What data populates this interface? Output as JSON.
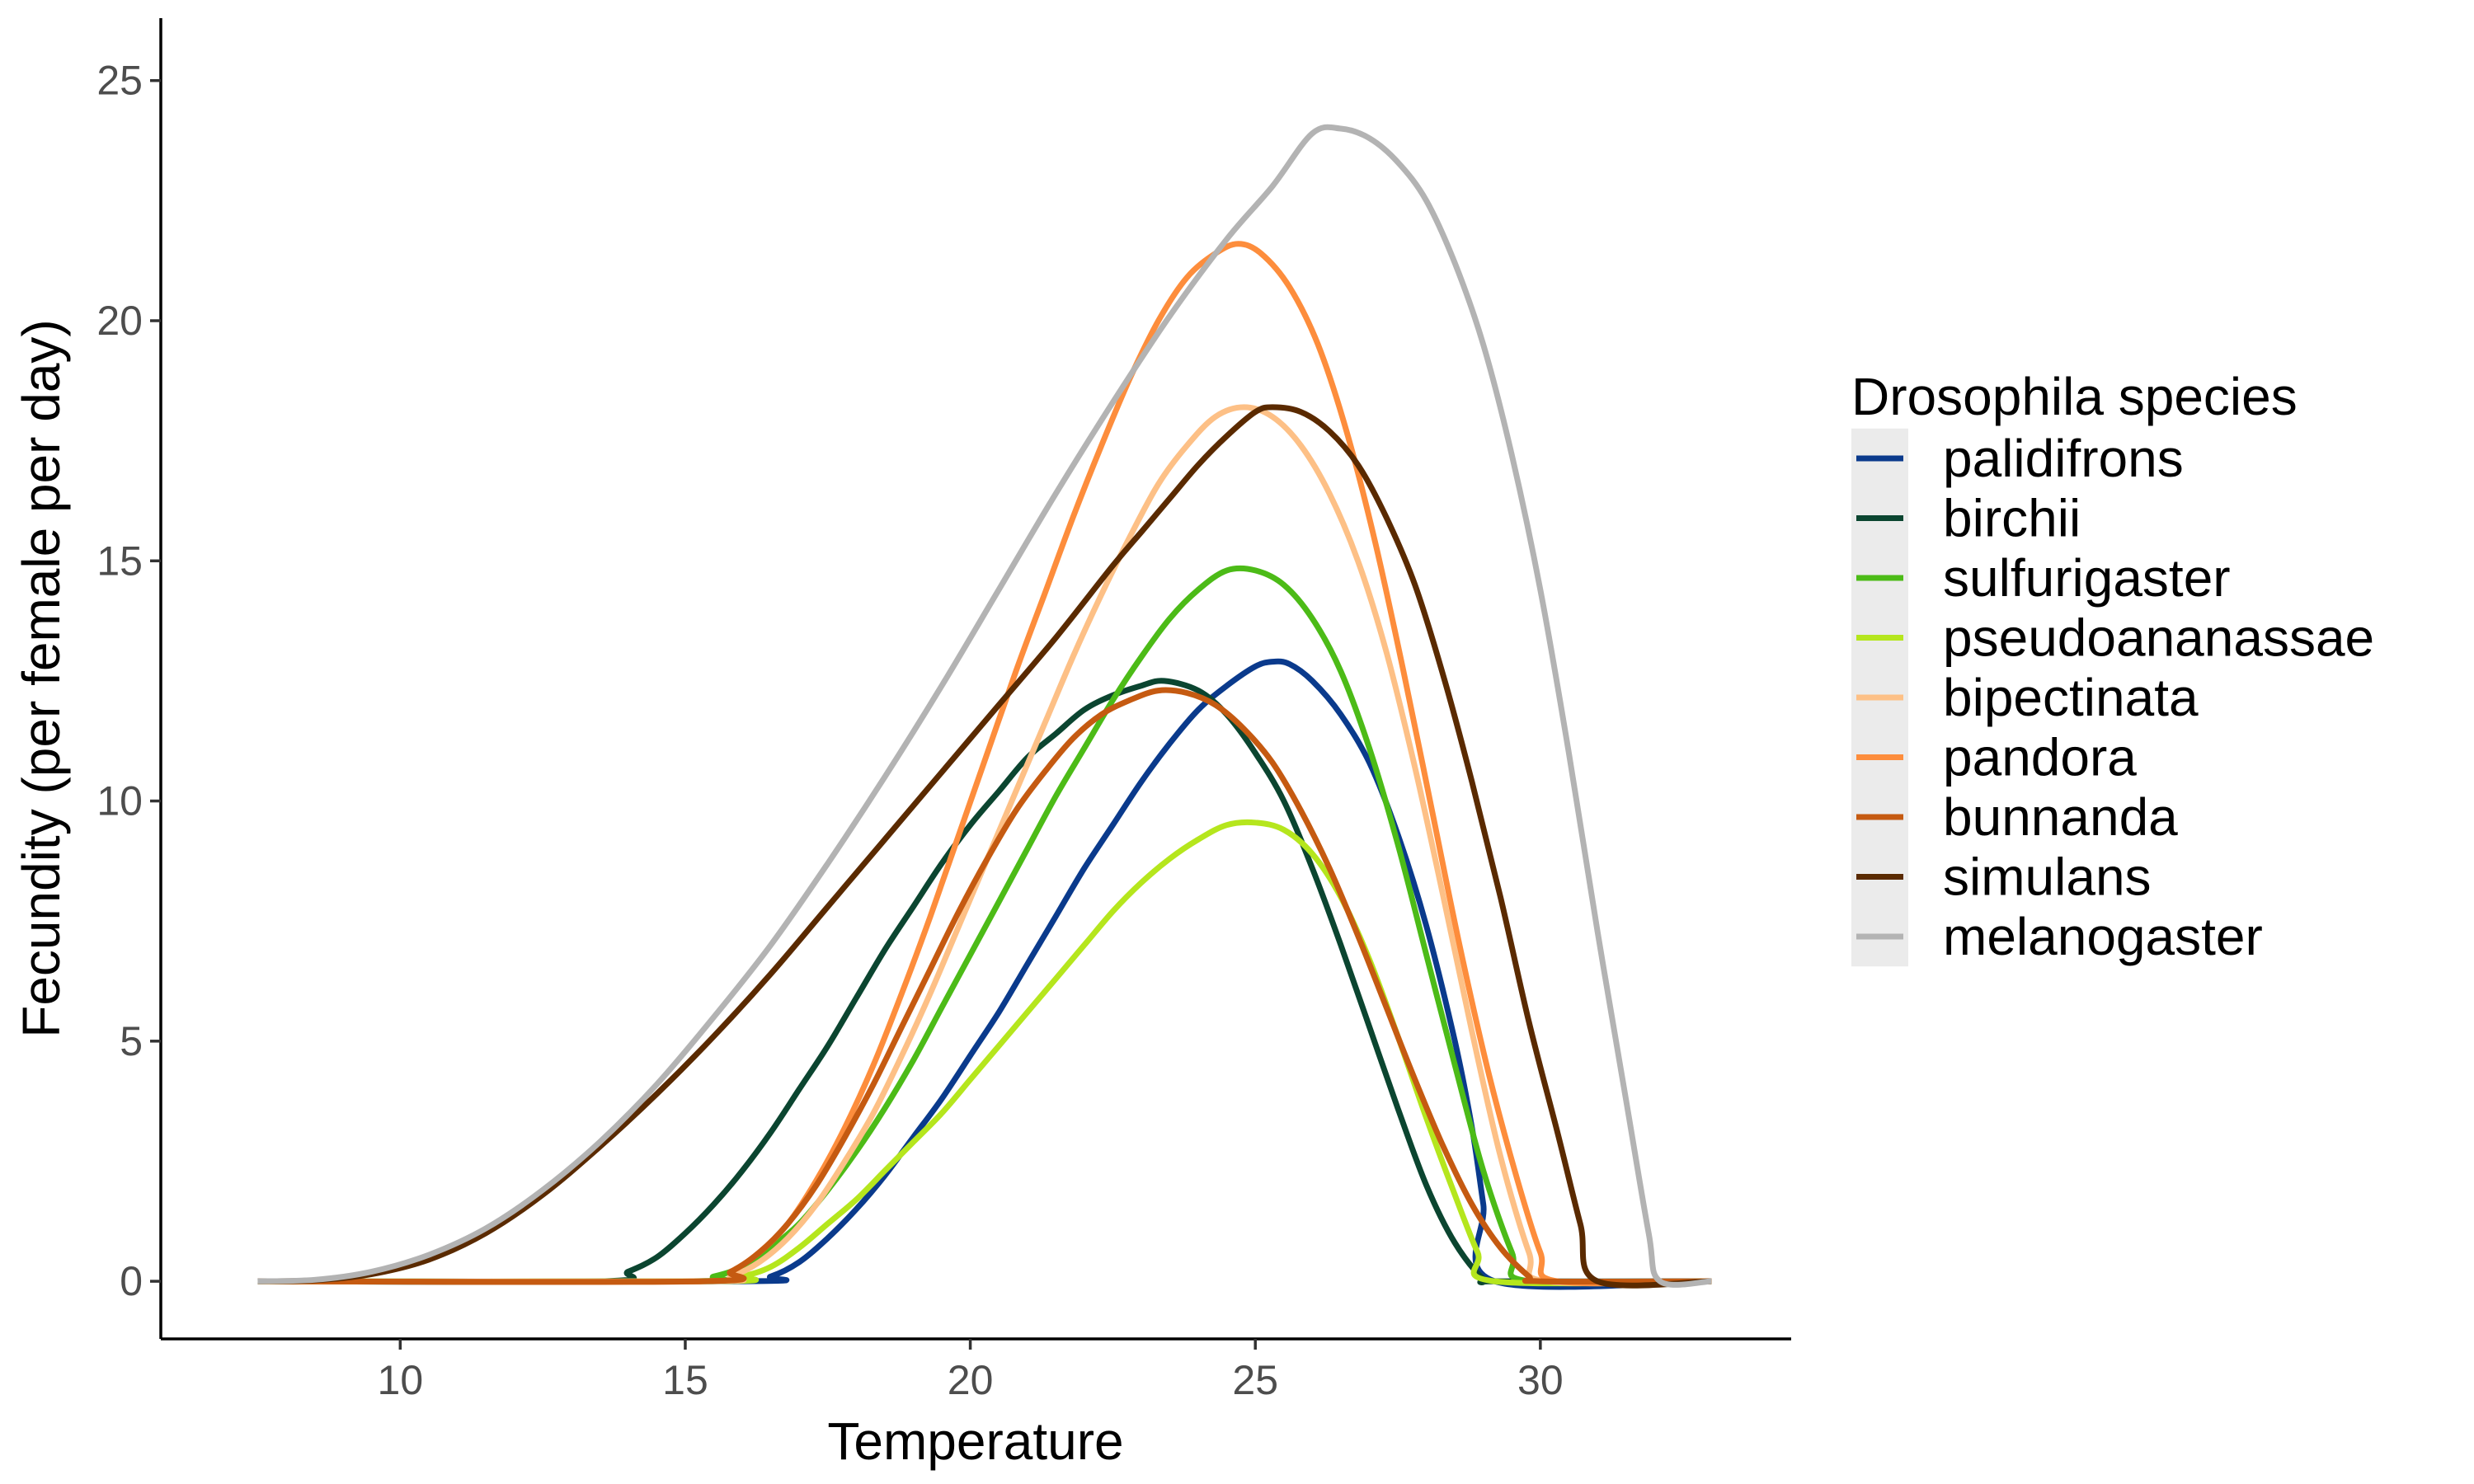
{
  "chart_data": {
    "type": "line",
    "title": "",
    "xlabel": "Temperature",
    "ylabel": "Fecundity (per female per day)",
    "xlim": [
      5.8,
      34.4
    ],
    "ylim": [
      -1.2,
      26.3
    ],
    "xticks": [
      10,
      15,
      20,
      25,
      30
    ],
    "yticks": [
      0,
      5,
      10,
      15,
      20,
      25
    ],
    "legend": {
      "title": "Drosophila species",
      "position": "right"
    },
    "series": [
      {
        "name": "palidifrons",
        "color": "#0a3a8c",
        "points": [
          [
            7.5,
            0
          ],
          [
            16,
            0
          ],
          [
            16.5,
            0.1
          ],
          [
            17,
            0.4
          ],
          [
            17.5,
            0.9
          ],
          [
            18,
            1.5
          ],
          [
            18.5,
            2.2
          ],
          [
            19,
            3.0
          ],
          [
            19.5,
            3.8
          ],
          [
            20,
            4.7
          ],
          [
            20.5,
            5.6
          ],
          [
            21,
            6.6
          ],
          [
            21.5,
            7.6
          ],
          [
            22,
            8.6
          ],
          [
            22.5,
            9.5
          ],
          [
            23,
            10.4
          ],
          [
            23.5,
            11.2
          ],
          [
            24,
            11.9
          ],
          [
            24.5,
            12.4
          ],
          [
            25,
            12.8
          ],
          [
            25.3,
            12.9
          ],
          [
            25.6,
            12.85
          ],
          [
            26,
            12.5
          ],
          [
            26.5,
            11.8
          ],
          [
            27,
            10.8
          ],
          [
            27.5,
            9.3
          ],
          [
            28,
            7.4
          ],
          [
            28.5,
            5.0
          ],
          [
            28.8,
            3.2
          ],
          [
            29.0,
            1.6
          ],
          [
            29.2,
            0
          ],
          [
            33,
            0
          ]
        ]
      },
      {
        "name": "birchii",
        "color": "#0b4530",
        "points": [
          [
            7.5,
            0
          ],
          [
            13.5,
            0
          ],
          [
            14,
            0.2
          ],
          [
            14.5,
            0.5
          ],
          [
            15,
            1.0
          ],
          [
            15.5,
            1.6
          ],
          [
            16,
            2.3
          ],
          [
            16.5,
            3.1
          ],
          [
            17,
            4.0
          ],
          [
            17.5,
            4.9
          ],
          [
            18,
            5.9
          ],
          [
            18.5,
            6.9
          ],
          [
            19,
            7.8
          ],
          [
            19.5,
            8.7
          ],
          [
            20,
            9.5
          ],
          [
            20.5,
            10.2
          ],
          [
            21,
            10.9
          ],
          [
            21.5,
            11.4
          ],
          [
            22,
            11.9
          ],
          [
            22.5,
            12.2
          ],
          [
            23,
            12.4
          ],
          [
            23.4,
            12.5
          ],
          [
            24,
            12.3
          ],
          [
            24.5,
            11.8
          ],
          [
            25,
            11.0
          ],
          [
            25.5,
            10.0
          ],
          [
            26,
            8.6
          ],
          [
            26.5,
            7.0
          ],
          [
            27,
            5.3
          ],
          [
            27.5,
            3.6
          ],
          [
            28,
            2.0
          ],
          [
            28.5,
            0.8
          ],
          [
            29,
            0.05
          ],
          [
            29.3,
            0
          ],
          [
            33,
            0
          ]
        ]
      },
      {
        "name": "sulfurigaster",
        "color": "#4cbb17",
        "points": [
          [
            7.5,
            0
          ],
          [
            15,
            0
          ],
          [
            15.5,
            0.1
          ],
          [
            16,
            0.3
          ],
          [
            16.5,
            0.7
          ],
          [
            17,
            1.2
          ],
          [
            17.5,
            1.9
          ],
          [
            18,
            2.7
          ],
          [
            18.5,
            3.6
          ],
          [
            19,
            4.6
          ],
          [
            19.5,
            5.7
          ],
          [
            20,
            6.8
          ],
          [
            20.5,
            7.9
          ],
          [
            21,
            9.0
          ],
          [
            21.5,
            10.1
          ],
          [
            22,
            11.1
          ],
          [
            22.5,
            12.1
          ],
          [
            23,
            13.0
          ],
          [
            23.5,
            13.8
          ],
          [
            24,
            14.4
          ],
          [
            24.5,
            14.8
          ],
          [
            25,
            14.8
          ],
          [
            25.5,
            14.5
          ],
          [
            26,
            13.8
          ],
          [
            26.5,
            12.7
          ],
          [
            27,
            11.1
          ],
          [
            27.5,
            9.1
          ],
          [
            28,
            6.8
          ],
          [
            28.5,
            4.5
          ],
          [
            29,
            2.3
          ],
          [
            29.5,
            0.6
          ],
          [
            29.8,
            0
          ],
          [
            33,
            0
          ]
        ]
      },
      {
        "name": "pseudoananassae",
        "color": "#b5e61d",
        "points": [
          [
            7.5,
            0
          ],
          [
            15.5,
            0
          ],
          [
            16,
            0.1
          ],
          [
            16.5,
            0.3
          ],
          [
            17,
            0.7
          ],
          [
            17.5,
            1.2
          ],
          [
            18,
            1.7
          ],
          [
            18.5,
            2.3
          ],
          [
            19,
            2.9
          ],
          [
            19.5,
            3.5
          ],
          [
            20,
            4.2
          ],
          [
            20.5,
            4.9
          ],
          [
            21,
            5.6
          ],
          [
            21.5,
            6.3
          ],
          [
            22,
            7.0
          ],
          [
            22.5,
            7.7
          ],
          [
            23,
            8.3
          ],
          [
            23.5,
            8.8
          ],
          [
            24,
            9.2
          ],
          [
            24.5,
            9.5
          ],
          [
            25,
            9.55
          ],
          [
            25.5,
            9.4
          ],
          [
            26,
            8.9
          ],
          [
            26.5,
            8.0
          ],
          [
            27,
            6.7
          ],
          [
            27.5,
            5.1
          ],
          [
            28,
            3.4
          ],
          [
            28.5,
            1.8
          ],
          [
            28.9,
            0.6
          ],
          [
            29.2,
            0
          ],
          [
            33,
            0
          ]
        ]
      },
      {
        "name": "bipectinata",
        "color": "#fdc086",
        "points": [
          [
            7.5,
            0
          ],
          [
            15.3,
            0
          ],
          [
            15.8,
            0.1
          ],
          [
            16.3,
            0.4
          ],
          [
            16.8,
            0.9
          ],
          [
            17.3,
            1.6
          ],
          [
            17.8,
            2.5
          ],
          [
            18.3,
            3.5
          ],
          [
            18.8,
            4.7
          ],
          [
            19.3,
            6.0
          ],
          [
            19.8,
            7.4
          ],
          [
            20.3,
            8.8
          ],
          [
            20.8,
            10.2
          ],
          [
            21.3,
            11.6
          ],
          [
            21.8,
            13.0
          ],
          [
            22.3,
            14.3
          ],
          [
            22.8,
            15.5
          ],
          [
            23.3,
            16.6
          ],
          [
            23.8,
            17.4
          ],
          [
            24.3,
            18.0
          ],
          [
            24.8,
            18.2
          ],
          [
            25.3,
            18.0
          ],
          [
            25.8,
            17.4
          ],
          [
            26.3,
            16.4
          ],
          [
            26.8,
            15.0
          ],
          [
            27.3,
            13.1
          ],
          [
            27.8,
            10.7
          ],
          [
            28.3,
            8.0
          ],
          [
            28.8,
            5.2
          ],
          [
            29.3,
            2.6
          ],
          [
            29.8,
            0.6
          ],
          [
            30.1,
            0
          ],
          [
            33,
            0
          ]
        ]
      },
      {
        "name": "pandora",
        "color": "#fd8d3c",
        "points": [
          [
            7.5,
            0
          ],
          [
            15.3,
            0
          ],
          [
            15.8,
            0.2
          ],
          [
            16.3,
            0.6
          ],
          [
            16.8,
            1.2
          ],
          [
            17.3,
            2.1
          ],
          [
            17.8,
            3.2
          ],
          [
            18.3,
            4.5
          ],
          [
            18.8,
            6.0
          ],
          [
            19.3,
            7.6
          ],
          [
            19.8,
            9.3
          ],
          [
            20.3,
            11.0
          ],
          [
            20.8,
            12.7
          ],
          [
            21.3,
            14.3
          ],
          [
            21.8,
            15.9
          ],
          [
            22.3,
            17.4
          ],
          [
            22.8,
            18.8
          ],
          [
            23.3,
            20.0
          ],
          [
            23.8,
            20.9
          ],
          [
            24.3,
            21.4
          ],
          [
            24.7,
            21.6
          ],
          [
            25.1,
            21.4
          ],
          [
            25.6,
            20.7
          ],
          [
            26.1,
            19.5
          ],
          [
            26.6,
            17.7
          ],
          [
            27.1,
            15.4
          ],
          [
            27.6,
            12.7
          ],
          [
            28.1,
            9.8
          ],
          [
            28.6,
            6.9
          ],
          [
            29.1,
            4.3
          ],
          [
            29.6,
            2.1
          ],
          [
            30.0,
            0.6
          ],
          [
            30.3,
            0
          ],
          [
            33,
            0
          ]
        ]
      },
      {
        "name": "bunnanda",
        "color": "#c55a11",
        "points": [
          [
            7.5,
            0
          ],
          [
            15.3,
            0
          ],
          [
            15.8,
            0.2
          ],
          [
            16.3,
            0.6
          ],
          [
            16.8,
            1.2
          ],
          [
            17.3,
            2.0
          ],
          [
            17.8,
            3.0
          ],
          [
            18.3,
            4.1
          ],
          [
            18.8,
            5.3
          ],
          [
            19.3,
            6.5
          ],
          [
            19.8,
            7.7
          ],
          [
            20.3,
            8.8
          ],
          [
            20.8,
            9.8
          ],
          [
            21.3,
            10.6
          ],
          [
            21.8,
            11.3
          ],
          [
            22.3,
            11.8
          ],
          [
            22.8,
            12.1
          ],
          [
            23.3,
            12.3
          ],
          [
            23.8,
            12.25
          ],
          [
            24.3,
            12.0
          ],
          [
            24.8,
            11.5
          ],
          [
            25.3,
            10.8
          ],
          [
            25.8,
            9.8
          ],
          [
            26.3,
            8.6
          ],
          [
            26.8,
            7.2
          ],
          [
            27.3,
            5.7
          ],
          [
            27.8,
            4.2
          ],
          [
            28.3,
            2.8
          ],
          [
            28.8,
            1.6
          ],
          [
            29.3,
            0.7
          ],
          [
            29.8,
            0.1
          ],
          [
            30.0,
            0
          ],
          [
            33,
            0
          ]
        ]
      },
      {
        "name": "simulans",
        "color": "#5a2a00",
        "points": [
          [
            7.5,
            0
          ],
          [
            8.5,
            0.02
          ],
          [
            9.5,
            0.15
          ],
          [
            10.5,
            0.45
          ],
          [
            11.5,
            1.0
          ],
          [
            12.5,
            1.8
          ],
          [
            13.5,
            2.8
          ],
          [
            14.5,
            3.9
          ],
          [
            15.5,
            5.1
          ],
          [
            16.5,
            6.4
          ],
          [
            17.5,
            7.8
          ],
          [
            18.5,
            9.2
          ],
          [
            19.5,
            10.6
          ],
          [
            20.5,
            12.0
          ],
          [
            21.5,
            13.4
          ],
          [
            22.5,
            14.9
          ],
          [
            23,
            15.6
          ],
          [
            23.5,
            16.3
          ],
          [
            24,
            17.0
          ],
          [
            24.5,
            17.6
          ],
          [
            25,
            18.1
          ],
          [
            25.3,
            18.2
          ],
          [
            25.8,
            18.1
          ],
          [
            26.3,
            17.7
          ],
          [
            26.8,
            17.0
          ],
          [
            27.3,
            15.9
          ],
          [
            27.8,
            14.5
          ],
          [
            28.3,
            12.6
          ],
          [
            28.8,
            10.4
          ],
          [
            29.3,
            8.0
          ],
          [
            29.8,
            5.4
          ],
          [
            30.3,
            3.1
          ],
          [
            30.7,
            1.2
          ],
          [
            31.0,
            0
          ],
          [
            33,
            0
          ]
        ]
      },
      {
        "name": "melanogaster",
        "color": "#b3b3b3",
        "points": [
          [
            7.5,
            0
          ],
          [
            8.5,
            0.03
          ],
          [
            9.5,
            0.2
          ],
          [
            10.5,
            0.55
          ],
          [
            11.5,
            1.1
          ],
          [
            12.5,
            1.9
          ],
          [
            13.5,
            2.9
          ],
          [
            14.5,
            4.1
          ],
          [
            15.5,
            5.5
          ],
          [
            16.5,
            7.0
          ],
          [
            17.5,
            8.7
          ],
          [
            18.5,
            10.5
          ],
          [
            19.5,
            12.4
          ],
          [
            20.5,
            14.4
          ],
          [
            21.5,
            16.4
          ],
          [
            22.5,
            18.3
          ],
          [
            23.5,
            20.1
          ],
          [
            24.5,
            21.7
          ],
          [
            25.3,
            22.8
          ],
          [
            26.0,
            23.9
          ],
          [
            26.5,
            24.0
          ],
          [
            27,
            23.8
          ],
          [
            27.5,
            23.3
          ],
          [
            28,
            22.5
          ],
          [
            28.5,
            21.2
          ],
          [
            29,
            19.5
          ],
          [
            29.5,
            17.2
          ],
          [
            30,
            14.4
          ],
          [
            30.5,
            11.0
          ],
          [
            31,
            7.3
          ],
          [
            31.5,
            3.8
          ],
          [
            31.9,
            1.0
          ],
          [
            32.1,
            0
          ],
          [
            33,
            0
          ]
        ]
      }
    ]
  }
}
